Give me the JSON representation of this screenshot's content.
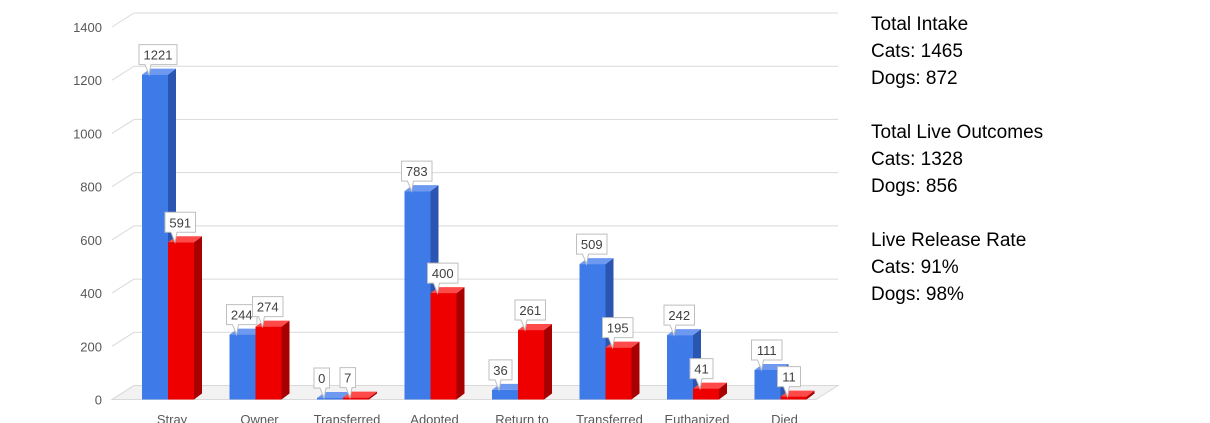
{
  "chart_data": {
    "type": "bar",
    "categories": [
      "Stray",
      "Owner",
      "Transferred",
      "Adopted",
      "Return to",
      "Transferred",
      "Euthanized",
      "Died"
    ],
    "series": [
      {
        "values": [
          1221,
          244,
          0,
          783,
          36,
          509,
          242,
          111
        ]
      },
      {
        "values": [
          591,
          274,
          7,
          400,
          261,
          195,
          41,
          11
        ]
      }
    ],
    "ylim": [
      0,
      1400
    ],
    "yticks": [
      0,
      200,
      400,
      600,
      800,
      1000,
      1200,
      1400
    ],
    "grid": true,
    "colors": {
      "series0": "#3f7be8",
      "series0_side": "#2a55b0",
      "series0_top": "#6d9af0",
      "series1": "#ee0000",
      "series1_side": "#a80000",
      "series1_top": "#ff4a4a"
    }
  },
  "summary": {
    "intake": {
      "heading": "Total Intake",
      "cats": "Cats: 1465",
      "dogs": "Dogs: 872"
    },
    "outcomes": {
      "heading": "Total Live Outcomes",
      "cats": "Cats: 1328",
      "dogs": "Dogs: 856"
    },
    "release": {
      "heading": "Live Release Rate",
      "cats": "Cats: 91%",
      "dogs": "Dogs: 98%"
    }
  }
}
